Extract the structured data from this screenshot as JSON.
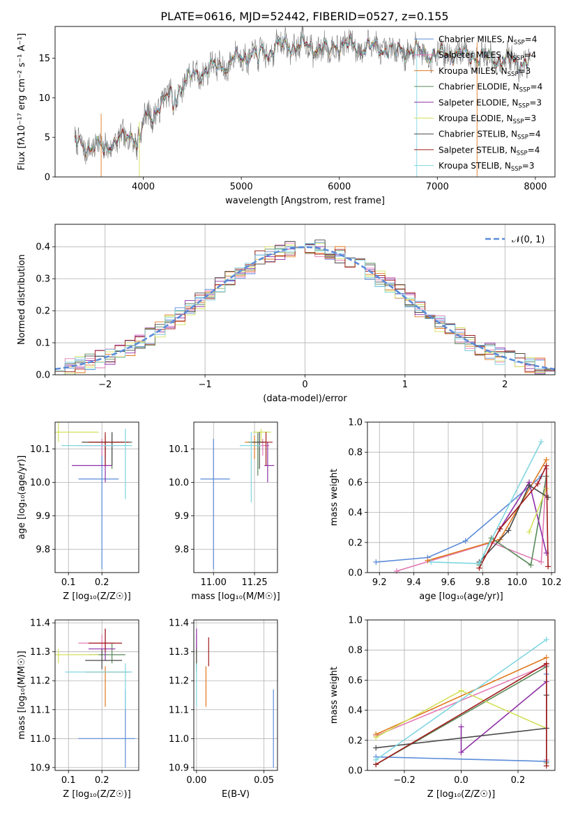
{
  "figure": {
    "title": "PLATE=0616, MJD=52442, FIBERID=0527, z=0.155"
  },
  "colors": {
    "grid": "#b0b0b0",
    "axis": "#000000",
    "normal_curve": "#5b8bd9"
  },
  "models": [
    {
      "name": "Chabrier MILES",
      "nssp": "4",
      "color": "#5b8bd9"
    },
    {
      "name": "Salpeter MILES",
      "nssp": "4",
      "color": "#e37ab5"
    },
    {
      "name": "Kroupa MILES",
      "nssp": "3",
      "color": "#e0781e"
    },
    {
      "name": "Chabrier ELODIE",
      "nssp": "4",
      "color": "#5a8a5a"
    },
    {
      "name": "Salpeter ELODIE",
      "nssp": "3",
      "color": "#8e2fa6"
    },
    {
      "name": "Kroupa ELODIE",
      "nssp": "3",
      "color": "#d3e05a"
    },
    {
      "name": "Chabrier STELIB",
      "nssp": "4",
      "color": "#4a4a4a"
    },
    {
      "name": "Salpeter STELIB",
      "nssp": "4",
      "color": "#a11a1a"
    },
    {
      "name": "Kroupa STELIB",
      "nssp": "3",
      "color": "#7fd6e0"
    }
  ],
  "chart_data": [
    {
      "type": "line",
      "id": "spectrum",
      "title": "PLATE=0616, MJD=52442, FIBERID=0527, z=0.155",
      "xlabel": "wavelength [Angstrom, rest frame]",
      "ylabel": "Flux [fλ10⁻¹⁷ erg cm⁻² s⁻¹ A⁻¹]",
      "xlim": [
        3100,
        8200
      ],
      "ylim": [
        0,
        19
      ],
      "xticks": [
        4000,
        5000,
        6000,
        7000,
        8000
      ],
      "yticks": [
        0,
        5,
        10,
        15
      ],
      "grid": false,
      "legend": "right",
      "continuum": {
        "wavelength": [
          3300,
          3500,
          3800,
          3950,
          4100,
          4300,
          4500,
          4800,
          5000,
          5200,
          5400,
          5600,
          5800,
          6000,
          6200,
          6500,
          6800,
          7000,
          7200,
          7500,
          7900
        ],
        "flux": [
          4.3,
          3.7,
          4.7,
          6.0,
          8.5,
          10.5,
          12.8,
          14.2,
          15.2,
          15.8,
          16.6,
          16.6,
          16.2,
          16.8,
          16.4,
          16.2,
          15.8,
          15.4,
          15.6,
          15.0,
          14.5
        ]
      }
    },
    {
      "type": "bar",
      "id": "residuals",
      "xlabel": "(data-model)/error",
      "ylabel": "Normed distribution",
      "xlim": [
        -2.5,
        2.5
      ],
      "ylim": [
        0,
        0.47
      ],
      "xticks": [
        -2,
        -1,
        0,
        1,
        2
      ],
      "yticks": [
        0.0,
        0.1,
        0.2,
        0.3,
        0.4
      ],
      "grid": true,
      "legend": "top-right",
      "normal_label": "𝒩(0, 1)",
      "bin_width": 0.1,
      "bins_start": -2.5
    },
    {
      "type": "scatter",
      "id": "age_vs_Z",
      "xlabel": "Z [log₁₀(Z/Z☉)]",
      "ylabel": "age  [log₁₀(age/yr)]",
      "xlim": [
        0.06,
        0.31
      ],
      "ylim": [
        9.73,
        10.18
      ],
      "xticks": [
        0.1,
        0.2
      ],
      "yticks": [
        9.8,
        9.9,
        10.0,
        10.1
      ],
      "grid": true,
      "points": [
        {
          "x": 0.2,
          "y": 10.01,
          "xerr": [
            0.07,
            0.05
          ],
          "yerr": [
            0.27,
            0.12
          ],
          "model": 0
        },
        {
          "x": 0.2,
          "y": 10.11,
          "xerr": [
            0.07,
            0.04
          ],
          "yerr": [
            0.03,
            0.02
          ],
          "model": 1
        },
        {
          "x": 0.21,
          "y": 10.12,
          "xerr": [
            0.07,
            0.05
          ],
          "yerr": [
            0.05,
            0.02
          ],
          "model": 2
        },
        {
          "x": 0.23,
          "y": 10.12,
          "xerr": [
            0.07,
            0.05
          ],
          "yerr": [
            0.08,
            0.03
          ],
          "model": 3
        },
        {
          "x": 0.21,
          "y": 10.05,
          "xerr": [
            0.1,
            0.02
          ],
          "yerr": [
            0.05,
            0.07
          ],
          "model": 4
        },
        {
          "x": 0.07,
          "y": 10.15,
          "xerr": [
            0.01,
            0.12
          ],
          "yerr": [
            0.03,
            0.03
          ],
          "model": 5
        },
        {
          "x": 0.23,
          "y": 10.12,
          "xerr": [
            0.09,
            0.06
          ],
          "yerr": [
            0.07,
            0.03
          ],
          "model": 6
        },
        {
          "x": 0.21,
          "y": 10.12,
          "xerr": [
            0.05,
            0.07
          ],
          "yerr": [
            0.07,
            0.03
          ],
          "model": 7
        },
        {
          "x": 0.27,
          "y": 10.11,
          "xerr": [
            0.19,
            0.02
          ],
          "yerr": [
            0.16,
            0.05
          ],
          "model": 8
        }
      ]
    },
    {
      "type": "scatter",
      "id": "age_vs_mass",
      "xlabel": "mass [log₁₀(M/M☉)]",
      "ylabel": "",
      "xlim": [
        10.88,
        11.39
      ],
      "ylim": [
        9.73,
        10.18
      ],
      "xticks": [
        11.0,
        11.25
      ],
      "yticks": [
        9.8,
        9.9,
        10.0,
        10.1
      ],
      "grid": true,
      "points": [
        {
          "x": 11.0,
          "y": 10.01,
          "xerr": [
            0.08,
            0.1
          ],
          "yerr": [
            0.27,
            0.12
          ],
          "model": 0
        },
        {
          "x": 11.3,
          "y": 10.11,
          "xerr": [
            0.05,
            0.04
          ],
          "yerr": [
            0.03,
            0.02
          ],
          "model": 1
        },
        {
          "x": 11.25,
          "y": 10.12,
          "xerr": [
            0.06,
            0.05
          ],
          "yerr": [
            0.05,
            0.02
          ],
          "model": 2
        },
        {
          "x": 11.27,
          "y": 10.12,
          "xerr": [
            0.06,
            0.04
          ],
          "yerr": [
            0.1,
            0.03
          ],
          "model": 3
        },
        {
          "x": 11.33,
          "y": 10.05,
          "xerr": [
            0.02,
            0.04
          ],
          "yerr": [
            0.05,
            0.07
          ],
          "model": 4
        },
        {
          "x": 11.29,
          "y": 10.15,
          "xerr": [
            0.05,
            0.06
          ],
          "yerr": [
            0.03,
            0.01
          ],
          "model": 5
        },
        {
          "x": 11.28,
          "y": 10.12,
          "xerr": [
            0.05,
            0.04
          ],
          "yerr": [
            0.08,
            0.03
          ],
          "model": 6
        },
        {
          "x": 11.32,
          "y": 10.12,
          "xerr": [
            0.03,
            0.04
          ],
          "yerr": [
            0.07,
            0.03
          ],
          "model": 7
        },
        {
          "x": 11.23,
          "y": 10.11,
          "xerr": [
            0.07,
            0.06
          ],
          "yerr": [
            0.17,
            0.04
          ],
          "model": 8
        }
      ]
    },
    {
      "type": "line",
      "id": "weight_vs_age",
      "xlabel": "age  [log₁₀(age/yr)]",
      "ylabel": "mass weight",
      "xlim": [
        9.13,
        10.22
      ],
      "ylim": [
        0,
        1.0
      ],
      "xticks": [
        9.2,
        9.4,
        9.6,
        9.8,
        10.0,
        10.2
      ],
      "yticks": [
        0.0,
        0.2,
        0.4,
        0.6,
        0.8,
        1.0
      ],
      "grid": true,
      "series": [
        {
          "model": 0,
          "x": [
            9.18,
            9.48,
            9.7,
            10.14
          ],
          "y": [
            0.07,
            0.1,
            0.21,
            0.64
          ]
        },
        {
          "model": 1,
          "x": [
            9.3,
            9.85,
            10.14,
            10.17
          ],
          "y": [
            0.01,
            0.2,
            0.07,
            0.69
          ]
        },
        {
          "model": 2,
          "x": [
            9.48,
            9.9,
            10.17
          ],
          "y": [
            0.08,
            0.22,
            0.75
          ]
        },
        {
          "model": 3,
          "x": [
            9.78,
            9.85,
            10.08,
            10.17
          ],
          "y": [
            0.05,
            0.23,
            0.05,
            0.64
          ]
        },
        {
          "model": 4,
          "x": [
            9.9,
            10.07,
            10.17
          ],
          "y": [
            0.29,
            0.6,
            0.13
          ]
        },
        {
          "model": 5,
          "x": [
            10.07,
            10.17
          ],
          "y": [
            0.27,
            0.56
          ]
        },
        {
          "model": 6,
          "x": [
            9.78,
            9.95,
            10.07,
            10.18
          ],
          "y": [
            0.07,
            0.28,
            0.58,
            0.5
          ]
        },
        {
          "model": 7,
          "x": [
            9.78,
            9.9,
            10.12,
            10.17,
            10.18
          ],
          "y": [
            0.03,
            0.29,
            0.59,
            0.71,
            0.04
          ]
        },
        {
          "model": 8,
          "x": [
            9.5,
            9.78,
            10.14
          ],
          "y": [
            0.07,
            0.06,
            0.87
          ]
        }
      ]
    },
    {
      "type": "scatter",
      "id": "mass_vs_Z",
      "xlabel": "Z [log₁₀(Z/Z☉)]",
      "ylabel": "mass [log₁₀(M/M☉)]",
      "xlim": [
        0.06,
        0.31
      ],
      "ylim": [
        10.89,
        11.41
      ],
      "xticks": [
        0.1,
        0.2
      ],
      "yticks": [
        10.9,
        11.0,
        11.1,
        11.2,
        11.3,
        11.4
      ],
      "grid": true,
      "points": [
        {
          "x": 0.27,
          "y": 11.0,
          "xerr": [
            0.14,
            0.03
          ],
          "yerr": [
            0.1,
            0.17
          ],
          "model": 0
        },
        {
          "x": 0.2,
          "y": 11.33,
          "xerr": [
            0.07,
            0.04
          ],
          "yerr": [
            0.04,
            0.03
          ],
          "model": 1
        },
        {
          "x": 0.21,
          "y": 11.23,
          "xerr": [
            0.06,
            0.07
          ],
          "yerr": [
            0.12,
            0.02
          ],
          "model": 2
        },
        {
          "x": 0.23,
          "y": 11.29,
          "xerr": [
            0.07,
            0.04
          ],
          "yerr": [
            0.03,
            0.04
          ],
          "model": 3
        },
        {
          "x": 0.21,
          "y": 11.31,
          "xerr": [
            0.05,
            0.03
          ],
          "yerr": [
            0.04,
            0.07
          ],
          "model": 4
        },
        {
          "x": 0.07,
          "y": 11.29,
          "xerr": [
            0.01,
            0.12
          ],
          "yerr": [
            0.03,
            0.02
          ],
          "model": 5
        },
        {
          "x": 0.2,
          "y": 11.27,
          "xerr": [
            0.05,
            0.06
          ],
          "yerr": [
            0.03,
            0.04
          ],
          "model": 6
        },
        {
          "x": 0.21,
          "y": 11.33,
          "xerr": [
            0.05,
            0.05
          ],
          "yerr": [
            0.03,
            0.05
          ],
          "model": 7
        },
        {
          "x": 0.27,
          "y": 11.23,
          "xerr": [
            0.18,
            0.02
          ],
          "yerr": [
            0.13,
            0.03
          ],
          "model": 8
        }
      ]
    },
    {
      "type": "scatter",
      "id": "mass_vs_EBV",
      "xlabel": "E(B-V)",
      "ylabel": "",
      "xlim": [
        -0.002,
        0.06
      ],
      "ylim": [
        10.89,
        11.41
      ],
      "xticks": [
        0.0,
        0.05
      ],
      "yticks": [
        10.9,
        11.0,
        11.1,
        11.2,
        11.3,
        11.4
      ],
      "grid": true,
      "points": [
        {
          "x": 0.057,
          "y": 11.0,
          "xerr": [
            0,
            0
          ],
          "yerr": [
            0.1,
            0.17
          ],
          "model": 0
        },
        {
          "x": 0.0,
          "y": 11.33,
          "xerr": [
            0,
            0
          ],
          "yerr": [
            0.04,
            0.03
          ],
          "model": 1
        },
        {
          "x": 0.007,
          "y": 11.21,
          "xerr": [
            0,
            0
          ],
          "yerr": [
            0.1,
            0.04
          ],
          "model": 2
        },
        {
          "x": 0.0,
          "y": 11.29,
          "xerr": [
            0,
            0
          ],
          "yerr": [
            0.04,
            0.04
          ],
          "model": 3
        },
        {
          "x": 0.0,
          "y": 11.33,
          "xerr": [
            0,
            0
          ],
          "yerr": [
            0.03,
            0.05
          ],
          "model": 4
        },
        {
          "x": 0.0,
          "y": 11.29,
          "xerr": [
            0,
            0
          ],
          "yerr": [
            0.03,
            0.02
          ],
          "model": 5
        },
        {
          "x": 0.0,
          "y": 11.27,
          "xerr": [
            0,
            0
          ],
          "yerr": [
            0.04,
            0.04
          ],
          "model": 6
        },
        {
          "x": 0.009,
          "y": 11.3,
          "xerr": [
            0,
            0
          ],
          "yerr": [
            0.05,
            0.05
          ],
          "model": 7
        },
        {
          "x": 0.0,
          "y": 11.23,
          "xerr": [
            0,
            0
          ],
          "yerr": [
            0.12,
            0.03
          ],
          "model": 8
        }
      ]
    },
    {
      "type": "line",
      "id": "weight_vs_Z",
      "xlabel": "Z [log₁₀(Z/Z☉)]",
      "ylabel": "mass weight",
      "xlim": [
        -0.33,
        0.33
      ],
      "ylim": [
        0,
        1.0
      ],
      "xticks": [
        -0.2,
        0.0,
        0.2
      ],
      "yticks": [
        0.0,
        0.2,
        0.4,
        0.6,
        0.8,
        1.0
      ],
      "grid": true,
      "series": [
        {
          "model": 0,
          "x": [
            -0.3,
            0.3,
            0.3
          ],
          "y": [
            0.09,
            0.06,
            0.64
          ]
        },
        {
          "model": 1,
          "x": [
            -0.3,
            0.3,
            0.3
          ],
          "y": [
            0.23,
            0.7,
            0.07
          ]
        },
        {
          "model": 2,
          "x": [
            -0.3,
            0.3
          ],
          "y": [
            0.24,
            0.75
          ]
        },
        {
          "model": 3,
          "x": [
            -0.3,
            0.3,
            0.3
          ],
          "y": [
            0.04,
            0.69,
            0.05
          ]
        },
        {
          "model": 4,
          "x": [
            0.0,
            0.0,
            0.3
          ],
          "y": [
            0.29,
            0.12,
            0.59
          ]
        },
        {
          "model": 5,
          "x": [
            -0.3,
            0.0,
            0.3
          ],
          "y": [
            0.22,
            0.53,
            0.28
          ]
        },
        {
          "model": 6,
          "x": [
            -0.3,
            0.3,
            0.3
          ],
          "y": [
            0.15,
            0.28,
            0.5
          ]
        },
        {
          "model": 7,
          "x": [
            -0.3,
            0.3,
            0.3
          ],
          "y": [
            0.04,
            0.71,
            0.03
          ]
        },
        {
          "model": 8,
          "x": [
            -0.3,
            0.3
          ],
          "y": [
            0.07,
            0.87
          ]
        }
      ]
    }
  ]
}
